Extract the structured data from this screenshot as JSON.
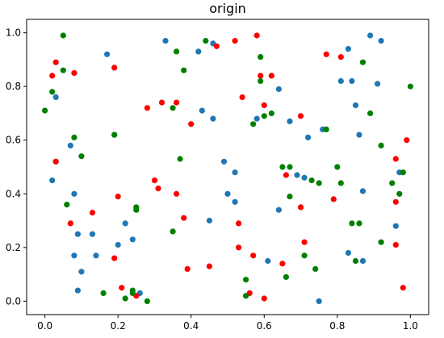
{
  "chart_data": {
    "type": "scatter",
    "title": "origin",
    "xlabel": "",
    "ylabel": "",
    "xlim": [
      -0.05,
      1.05
    ],
    "ylim": [
      -0.05,
      1.05
    ],
    "xticks": [
      "0.0",
      "0.2",
      "0.4",
      "0.6",
      "0.8",
      "1.0"
    ],
    "yticks": [
      "0.0",
      "0.2",
      "0.4",
      "0.6",
      "0.8",
      "1.0"
    ],
    "grid": false,
    "legend": "none",
    "series": [
      {
        "color": "#1f77b4",
        "points": [
          [
            0.17,
            0.92
          ],
          [
            0.33,
            0.97
          ],
          [
            0.42,
            0.93
          ],
          [
            0.46,
            0.96
          ],
          [
            0.03,
            0.76
          ],
          [
            0.19,
            0.62
          ],
          [
            0.43,
            0.71
          ],
          [
            0.46,
            0.68
          ],
          [
            0.58,
            0.68
          ],
          [
            0.64,
            0.79
          ],
          [
            0.67,
            0.67
          ],
          [
            0.72,
            0.61
          ],
          [
            0.76,
            0.64
          ],
          [
            0.83,
            0.94
          ],
          [
            0.84,
            0.82
          ],
          [
            0.81,
            0.82
          ],
          [
            0.91,
            0.81
          ],
          [
            0.92,
            0.97
          ],
          [
            0.89,
            0.99
          ],
          [
            0.85,
            0.73
          ],
          [
            0.86,
            0.62
          ],
          [
            0.07,
            0.58
          ],
          [
            0.03,
            0.52
          ],
          [
            0.02,
            0.45
          ],
          [
            0.08,
            0.4
          ],
          [
            0.49,
            0.52
          ],
          [
            0.52,
            0.48
          ],
          [
            0.5,
            0.4
          ],
          [
            0.52,
            0.37
          ],
          [
            0.69,
            0.47
          ],
          [
            0.71,
            0.46
          ],
          [
            0.64,
            0.34
          ],
          [
            0.87,
            0.41
          ],
          [
            0.97,
            0.48
          ],
          [
            0.96,
            0.28
          ],
          [
            0.09,
            0.25
          ],
          [
            0.08,
            0.17
          ],
          [
            0.13,
            0.25
          ],
          [
            0.14,
            0.17
          ],
          [
            0.22,
            0.29
          ],
          [
            0.24,
            0.23
          ],
          [
            0.2,
            0.21
          ],
          [
            0.1,
            0.11
          ],
          [
            0.09,
            0.04
          ],
          [
            0.26,
            0.03
          ],
          [
            0.45,
            0.3
          ],
          [
            0.61,
            0.15
          ],
          [
            0.83,
            0.18
          ],
          [
            0.87,
            0.15
          ],
          [
            0.75,
            0.0
          ]
        ]
      },
      {
        "color": "#ff0000",
        "points": [
          [
            0.03,
            0.89
          ],
          [
            0.02,
            0.84
          ],
          [
            0.08,
            0.85
          ],
          [
            0.19,
            0.87
          ],
          [
            0.28,
            0.72
          ],
          [
            0.32,
            0.74
          ],
          [
            0.36,
            0.74
          ],
          [
            0.4,
            0.66
          ],
          [
            0.47,
            0.95
          ],
          [
            0.52,
            0.97
          ],
          [
            0.58,
            0.99
          ],
          [
            0.59,
            0.84
          ],
          [
            0.62,
            0.84
          ],
          [
            0.54,
            0.76
          ],
          [
            0.6,
            0.73
          ],
          [
            0.7,
            0.69
          ],
          [
            0.77,
            0.92
          ],
          [
            0.81,
            0.91
          ],
          [
            0.96,
            0.53
          ],
          [
            0.99,
            0.6
          ],
          [
            0.03,
            0.52
          ],
          [
            0.3,
            0.45
          ],
          [
            0.31,
            0.42
          ],
          [
            0.36,
            0.4
          ],
          [
            0.2,
            0.39
          ],
          [
            0.38,
            0.31
          ],
          [
            0.07,
            0.29
          ],
          [
            0.13,
            0.33
          ],
          [
            0.19,
            0.16
          ],
          [
            0.21,
            0.05
          ],
          [
            0.25,
            0.02
          ],
          [
            0.39,
            0.12
          ],
          [
            0.45,
            0.13
          ],
          [
            0.53,
            0.29
          ],
          [
            0.53,
            0.2
          ],
          [
            0.57,
            0.17
          ],
          [
            0.56,
            0.03
          ],
          [
            0.6,
            0.01
          ],
          [
            0.65,
            0.14
          ],
          [
            0.66,
            0.47
          ],
          [
            0.7,
            0.35
          ],
          [
            0.71,
            0.22
          ],
          [
            0.79,
            0.38
          ],
          [
            0.96,
            0.37
          ],
          [
            0.96,
            0.21
          ],
          [
            0.98,
            0.05
          ]
        ]
      },
      {
        "color": "#008000",
        "points": [
          [
            0.05,
            0.99
          ],
          [
            0.05,
            0.86
          ],
          [
            0.02,
            0.78
          ],
          [
            0.0,
            0.71
          ],
          [
            0.08,
            0.61
          ],
          [
            0.1,
            0.54
          ],
          [
            0.06,
            0.36
          ],
          [
            0.19,
            0.62
          ],
          [
            0.35,
            0.72
          ],
          [
            0.38,
            0.86
          ],
          [
            0.37,
            0.53
          ],
          [
            0.44,
            0.97
          ],
          [
            0.36,
            0.93
          ],
          [
            0.59,
            0.91
          ],
          [
            0.59,
            0.82
          ],
          [
            0.6,
            0.69
          ],
          [
            0.62,
            0.7
          ],
          [
            0.57,
            0.66
          ],
          [
            0.65,
            0.5
          ],
          [
            0.67,
            0.5
          ],
          [
            0.67,
            0.39
          ],
          [
            0.73,
            0.45
          ],
          [
            0.75,
            0.44
          ],
          [
            0.77,
            0.64
          ],
          [
            0.8,
            0.5
          ],
          [
            0.81,
            0.44
          ],
          [
            0.87,
            0.89
          ],
          [
            0.89,
            0.7
          ],
          [
            0.92,
            0.58
          ],
          [
            0.95,
            0.44
          ],
          [
            0.98,
            0.48
          ],
          [
            0.97,
            0.4
          ],
          [
            0.84,
            0.29
          ],
          [
            0.86,
            0.29
          ],
          [
            0.85,
            0.15
          ],
          [
            0.92,
            0.22
          ],
          [
            0.25,
            0.35
          ],
          [
            0.25,
            0.34
          ],
          [
            0.35,
            0.26
          ],
          [
            0.24,
            0.04
          ],
          [
            0.24,
            0.03
          ],
          [
            0.22,
            0.01
          ],
          [
            0.16,
            0.03
          ],
          [
            0.28,
            0.0
          ],
          [
            0.55,
            0.08
          ],
          [
            0.55,
            0.02
          ],
          [
            0.66,
            0.09
          ],
          [
            0.71,
            0.17
          ],
          [
            0.74,
            0.12
          ],
          [
            1.0,
            0.8
          ]
        ]
      }
    ]
  }
}
